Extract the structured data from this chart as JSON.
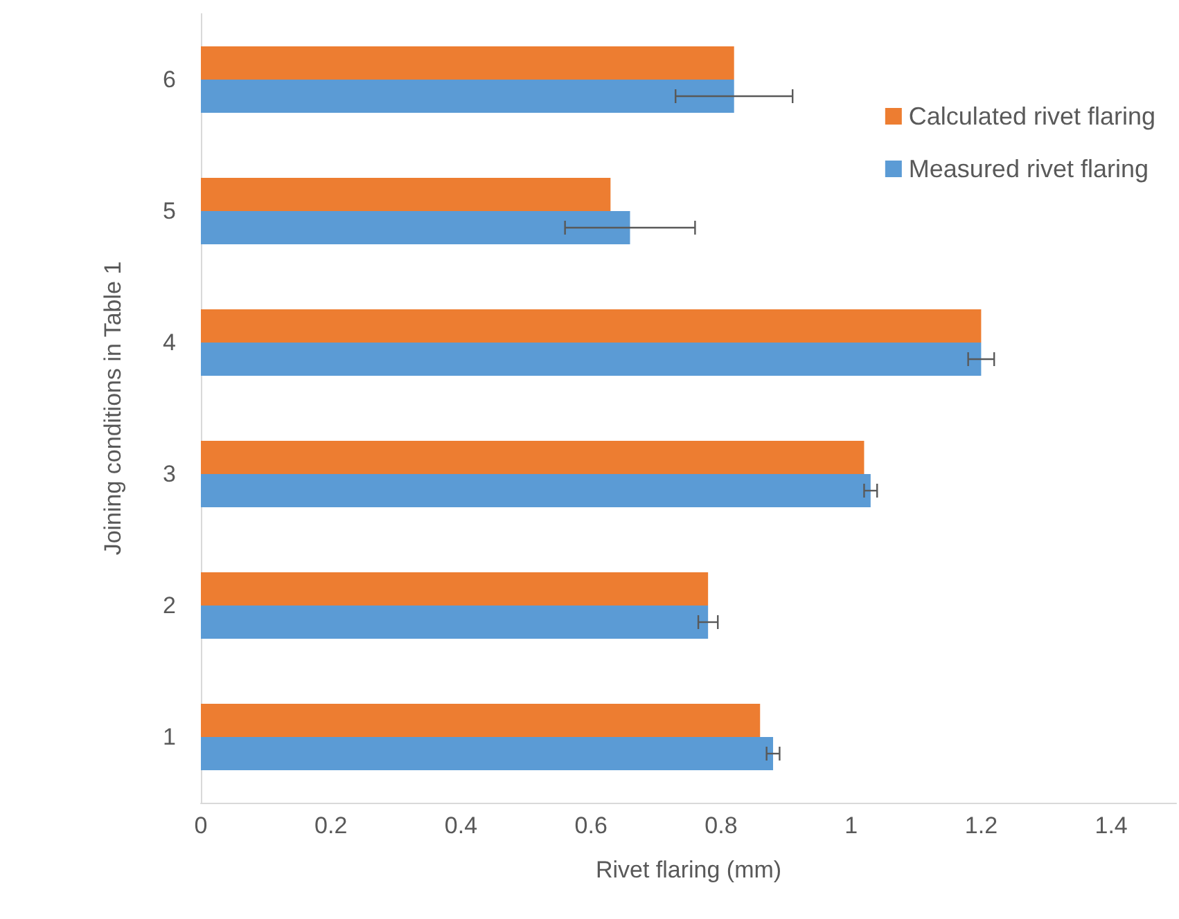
{
  "chart_data": {
    "type": "bar",
    "orientation": "horizontal",
    "xlabel": "Rivet flaring (mm)",
    "ylabel": "Joining conditions in Table 1",
    "categories": [
      "6",
      "5",
      "4",
      "3",
      "2",
      "1"
    ],
    "series": [
      {
        "name": "Calculated rivet flaring",
        "color": "#ed7d31",
        "values": [
          0.82,
          0.63,
          1.2,
          1.02,
          0.78,
          0.86
        ]
      },
      {
        "name": "Measured rivet flaring",
        "color": "#5b9bd5",
        "values": [
          0.82,
          0.66,
          1.2,
          1.03,
          0.78,
          0.88
        ],
        "errors": [
          0.09,
          0.1,
          0.02,
          0.01,
          0.015,
          0.01
        ]
      }
    ],
    "xlim": [
      0,
      1.5
    ],
    "xticks": [
      0,
      0.2,
      0.4,
      0.6,
      0.8,
      1,
      1.2,
      1.4
    ],
    "grid": false,
    "legend": "right"
  }
}
